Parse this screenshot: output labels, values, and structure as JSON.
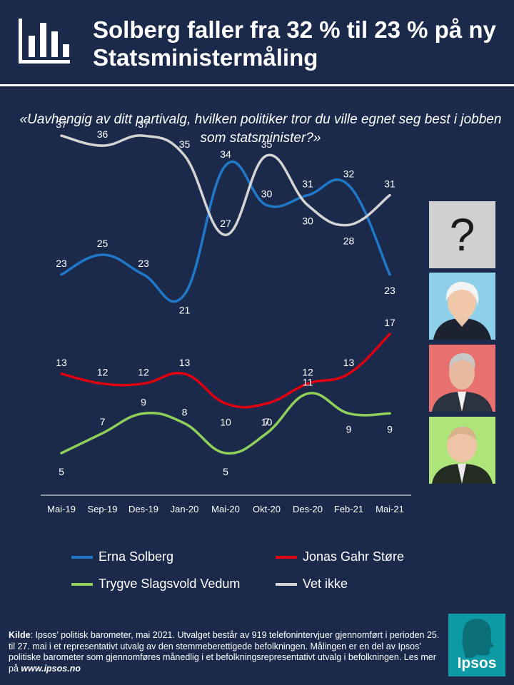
{
  "header": {
    "title": "Solberg faller fra 32 % til 23 % på ny Statsministermåling",
    "icon": "bar-chart-icon"
  },
  "question": "«Uavhengig av ditt partivalg, hvilken politiker tror du ville egnet seg best i jobben som statsminister?»",
  "chart_data": {
    "type": "line",
    "categories": [
      "Mai-19",
      "Sep-19",
      "Des-19",
      "Jan-20",
      "Mai-20",
      "Okt-20",
      "Des-20",
      "Feb-21",
      "Mai-21"
    ],
    "series": [
      {
        "name": "Erna Solberg",
        "color": "#1f78c8",
        "values": [
          23,
          25,
          23,
          21,
          34,
          30,
          31,
          32,
          23
        ]
      },
      {
        "name": "Jonas Gahr Støre",
        "color": "#e00010",
        "values": [
          13,
          12,
          12,
          13,
          10,
          10,
          12,
          13,
          17
        ]
      },
      {
        "name": "Trygve Slagsvold Vedum",
        "color": "#8fd05a",
        "values": [
          5,
          7,
          9,
          8,
          5,
          7,
          11,
          9,
          9
        ]
      },
      {
        "name": "Vet ikke",
        "color": "#d4d4d4",
        "values": [
          37,
          36,
          37,
          35,
          27,
          35,
          30,
          28,
          31
        ]
      }
    ],
    "legend_position": "bottom",
    "grid": false
  },
  "legend": [
    {
      "label": "Erna Solberg",
      "color": "#1f78c8"
    },
    {
      "label": "Jonas Gahr Støre",
      "color": "#e00010"
    },
    {
      "label": "Trygve Slagsvold Vedum",
      "color": "#8fd05a"
    },
    {
      "label": "Vet ikke",
      "color": "#d4d4d4"
    }
  ],
  "photos": [
    {
      "name": "unknown",
      "glyph": "?"
    },
    {
      "name": "Erna Solberg"
    },
    {
      "name": "Jonas Gahr Støre"
    },
    {
      "name": "Trygve Slagsvold Vedum"
    }
  ],
  "source": {
    "label": "Kilde",
    "text": ": Ipsos’ politisk barometer, mai 2021. Utvalget består av 919 telefonintervjuer gjennomført i perioden 25. til 27. mai i et representativt utvalg av den stemmeberettigede befolkningen. Målingen er en del av Ipsos’ politiske barometer som gjennomføres månedlig i et befolkningsrepresentativt utvalg i befolkningen. Les mer på ",
    "link": "www.ipsos.no"
  },
  "brand": {
    "name": "Ipsos",
    "color": "#0d9aa4"
  }
}
